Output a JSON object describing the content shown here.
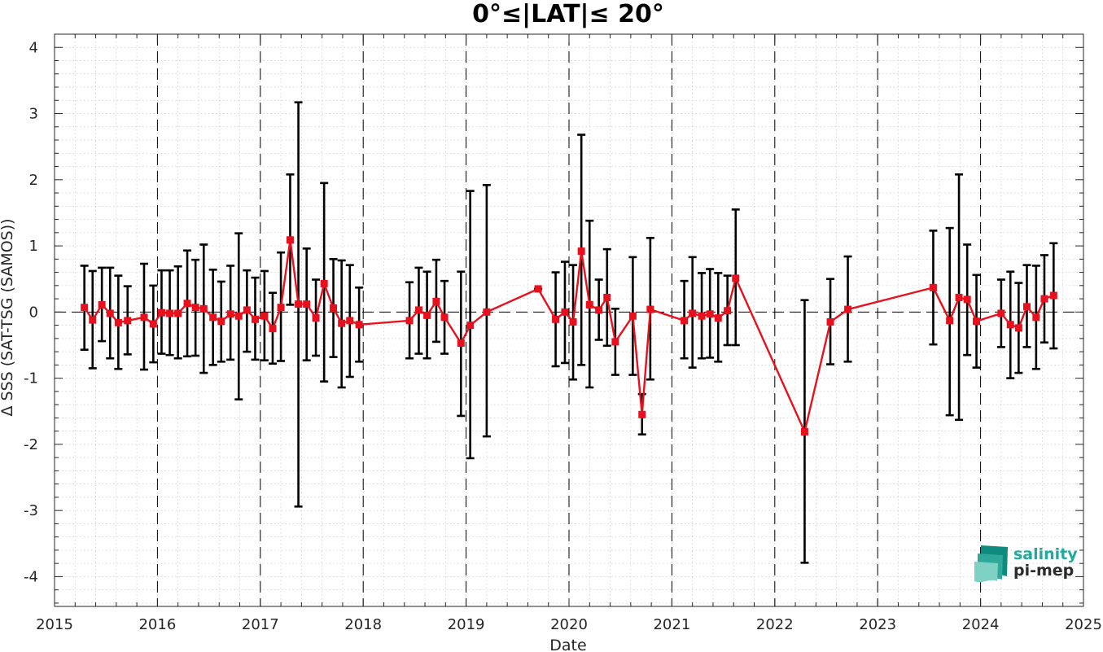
{
  "chart_data": {
    "type": "line",
    "title": "0°≤|LAT|≤ 20°",
    "xlabel": "Date",
    "ylabel": "Δ SSS (SAT-TSG (SAMOS))",
    "xlim": [
      2015,
      2025
    ],
    "ylim": [
      -4.45,
      4.2
    ],
    "x_ticks": [
      "2015",
      "2016",
      "2017",
      "2018",
      "2019",
      "2020",
      "2021",
      "2022",
      "2023",
      "2024",
      "2025"
    ],
    "y_ticks": [
      -4,
      -3,
      -2,
      -1,
      0,
      1,
      2,
      3,
      4
    ],
    "grid": true,
    "reference_line": 0,
    "year_separators": [
      2016,
      2017,
      2018,
      2019,
      2020,
      2021,
      2022,
      2023,
      2024
    ],
    "colors": {
      "line": "#e8101c",
      "marker": "#e8101c",
      "errorbar": "#000000"
    },
    "series": [
      {
        "x": [
          2015.29,
          2015.37,
          2015.46,
          2015.54,
          2015.62,
          2015.71,
          2015.87,
          2015.96,
          2016.04,
          2016.12,
          2016.2,
          2016.29,
          2016.37,
          2016.45,
          2016.54,
          2016.62,
          2016.71,
          2016.79,
          2016.87,
          2016.95,
          2017.04,
          2017.12,
          2017.2,
          2017.29,
          2017.37,
          2017.45,
          2017.54,
          2017.62,
          2017.71,
          2017.79,
          2017.87,
          2017.96,
          2018.45,
          2018.54,
          2018.62,
          2018.71,
          2018.79,
          2018.95,
          2019.04,
          2019.2,
          2019.7,
          2019.87,
          2019.96,
          2020.04,
          2020.12,
          2020.2,
          2020.29,
          2020.37,
          2020.45,
          2020.62,
          2020.71,
          2020.79,
          2021.12,
          2021.2,
          2021.29,
          2021.37,
          2021.45,
          2021.54,
          2021.62,
          2022.29,
          2022.54,
          2022.71,
          2023.54,
          2023.7,
          2023.79,
          2023.87,
          2023.96,
          2024.2,
          2024.29,
          2024.37,
          2024.45,
          2024.54,
          2024.62,
          2024.71
        ],
        "y": [
          0.07,
          -0.12,
          0.11,
          -0.02,
          -0.16,
          -0.13,
          -0.08,
          -0.18,
          -0.01,
          -0.02,
          -0.02,
          0.13,
          0.07,
          0.05,
          -0.08,
          -0.14,
          -0.03,
          -0.06,
          0.03,
          -0.11,
          -0.06,
          -0.25,
          0.07,
          1.09,
          0.12,
          0.12,
          -0.09,
          0.43,
          0.06,
          -0.17,
          -0.13,
          -0.19,
          -0.13,
          0.03,
          -0.05,
          0.16,
          -0.08,
          -0.47,
          -0.2,
          0.0,
          0.35,
          -0.11,
          0.0,
          -0.15,
          0.92,
          0.11,
          0.03,
          0.22,
          -0.45,
          -0.06,
          -1.55,
          0.04,
          -0.13,
          -0.02,
          -0.06,
          -0.03,
          -0.09,
          0.02,
          0.51,
          -1.81,
          -0.15,
          0.04,
          0.37,
          -0.13,
          0.22,
          0.19,
          -0.14,
          -0.02,
          -0.19,
          -0.24,
          0.08,
          -0.08,
          0.2,
          0.25
        ],
        "y_low": [
          -0.57,
          -0.85,
          -0.44,
          -0.7,
          -0.86,
          -0.64,
          -0.87,
          -0.76,
          -0.63,
          -0.65,
          -0.7,
          -0.67,
          -0.66,
          -0.92,
          -0.8,
          -0.75,
          -0.72,
          -1.32,
          -0.6,
          -0.72,
          -0.73,
          -0.78,
          -0.74,
          0.11,
          -2.94,
          -0.73,
          -0.66,
          -1.05,
          -0.68,
          -1.14,
          -0.98,
          -0.75,
          -0.7,
          -0.63,
          -0.7,
          -0.45,
          -0.63,
          -1.57,
          -2.21,
          -1.88,
          0.35,
          -0.82,
          -0.77,
          -1.02,
          -0.8,
          -1.14,
          -0.42,
          -0.51,
          -0.95,
          -0.95,
          -1.85,
          -1.02,
          -0.7,
          -0.84,
          -0.7,
          -0.69,
          -0.75,
          -0.5,
          -0.5,
          -3.79,
          -0.79,
          -0.75,
          -0.49,
          -1.56,
          -1.63,
          -0.65,
          -0.84,
          -0.53,
          -1.0,
          -0.92,
          -0.53,
          -0.86,
          -0.46,
          -0.55
        ],
        "y_high": [
          0.7,
          0.62,
          0.67,
          0.67,
          0.55,
          0.39,
          0.73,
          0.4,
          0.63,
          0.63,
          0.69,
          0.93,
          0.79,
          1.02,
          0.64,
          0.46,
          0.7,
          1.19,
          0.63,
          0.52,
          0.62,
          0.29,
          0.9,
          2.08,
          3.17,
          0.96,
          0.49,
          1.95,
          0.8,
          0.78,
          0.71,
          0.37,
          0.45,
          0.67,
          0.61,
          0.79,
          0.47,
          0.61,
          1.83,
          1.92,
          0.35,
          0.6,
          0.76,
          0.71,
          2.68,
          1.38,
          0.49,
          0.95,
          0.05,
          0.83,
          -1.24,
          1.12,
          0.47,
          0.83,
          0.59,
          0.65,
          0.59,
          0.55,
          1.55,
          0.18,
          0.5,
          0.84,
          1.23,
          1.27,
          2.08,
          1.02,
          0.56,
          0.49,
          0.61,
          0.44,
          0.71,
          0.7,
          0.86,
          1.04
        ]
      }
    ]
  },
  "logo": {
    "line1": "salinity",
    "line2": "pi-mep"
  }
}
